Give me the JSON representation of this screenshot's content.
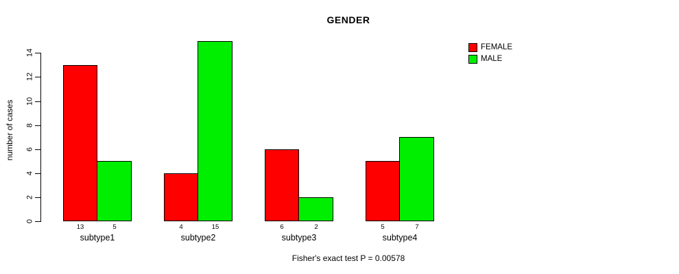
{
  "chart_data": {
    "type": "bar",
    "title": "GENDER",
    "xlabel": "",
    "ylabel": "number of cases",
    "categories": [
      "subtype1",
      "subtype2",
      "subtype3",
      "subtype4"
    ],
    "series": [
      {
        "name": "FEMALE",
        "color": "#FF0000",
        "values": [
          13,
          4,
          6,
          5
        ]
      },
      {
        "name": "MALE",
        "color": "#00EE00",
        "values": [
          5,
          15,
          2,
          7
        ]
      }
    ],
    "bar_value_labels": [
      [
        "13",
        "5"
      ],
      [
        "4",
        "15"
      ],
      [
        "6",
        "2"
      ],
      [
        "5",
        "7"
      ]
    ],
    "yticks": [
      0,
      2,
      4,
      6,
      8,
      10,
      12,
      14
    ],
    "ylim": [
      0,
      15
    ],
    "grid": false,
    "legend_position": "top-right",
    "annotation": "Fisher's exact test P = 0.00578"
  }
}
